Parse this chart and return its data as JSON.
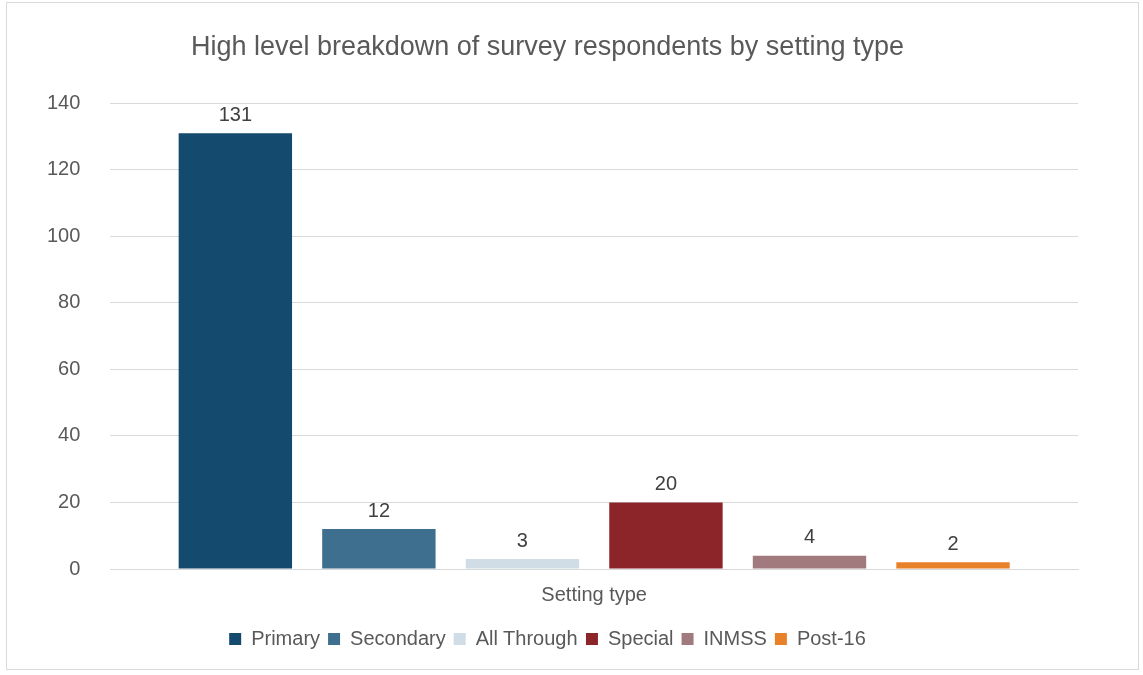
{
  "chart_data": {
    "type": "bar",
    "title": "High level breakdown of survey respondents by setting type",
    "categories": [
      "Setting type"
    ],
    "series": [
      {
        "name": "Primary",
        "color": "#144a6e",
        "values": [
          131
        ]
      },
      {
        "name": "Secondary",
        "color": "#3e6f8f",
        "values": [
          12
        ]
      },
      {
        "name": "All Through",
        "color": "#d0dde6",
        "values": [
          3
        ]
      },
      {
        "name": "Special",
        "color": "#8b252a",
        "values": [
          20
        ]
      },
      {
        "name": "INMSS",
        "color": "#a07a7d",
        "values": [
          4
        ]
      },
      {
        "name": "Post-16",
        "color": "#e8822a",
        "values": [
          2
        ]
      }
    ],
    "ylim": [
      0,
      140
    ],
    "yticks": [
      0,
      20,
      40,
      60,
      80,
      100,
      120,
      140
    ],
    "grid": "y",
    "legend": "bottom",
    "data_labels": true
  }
}
